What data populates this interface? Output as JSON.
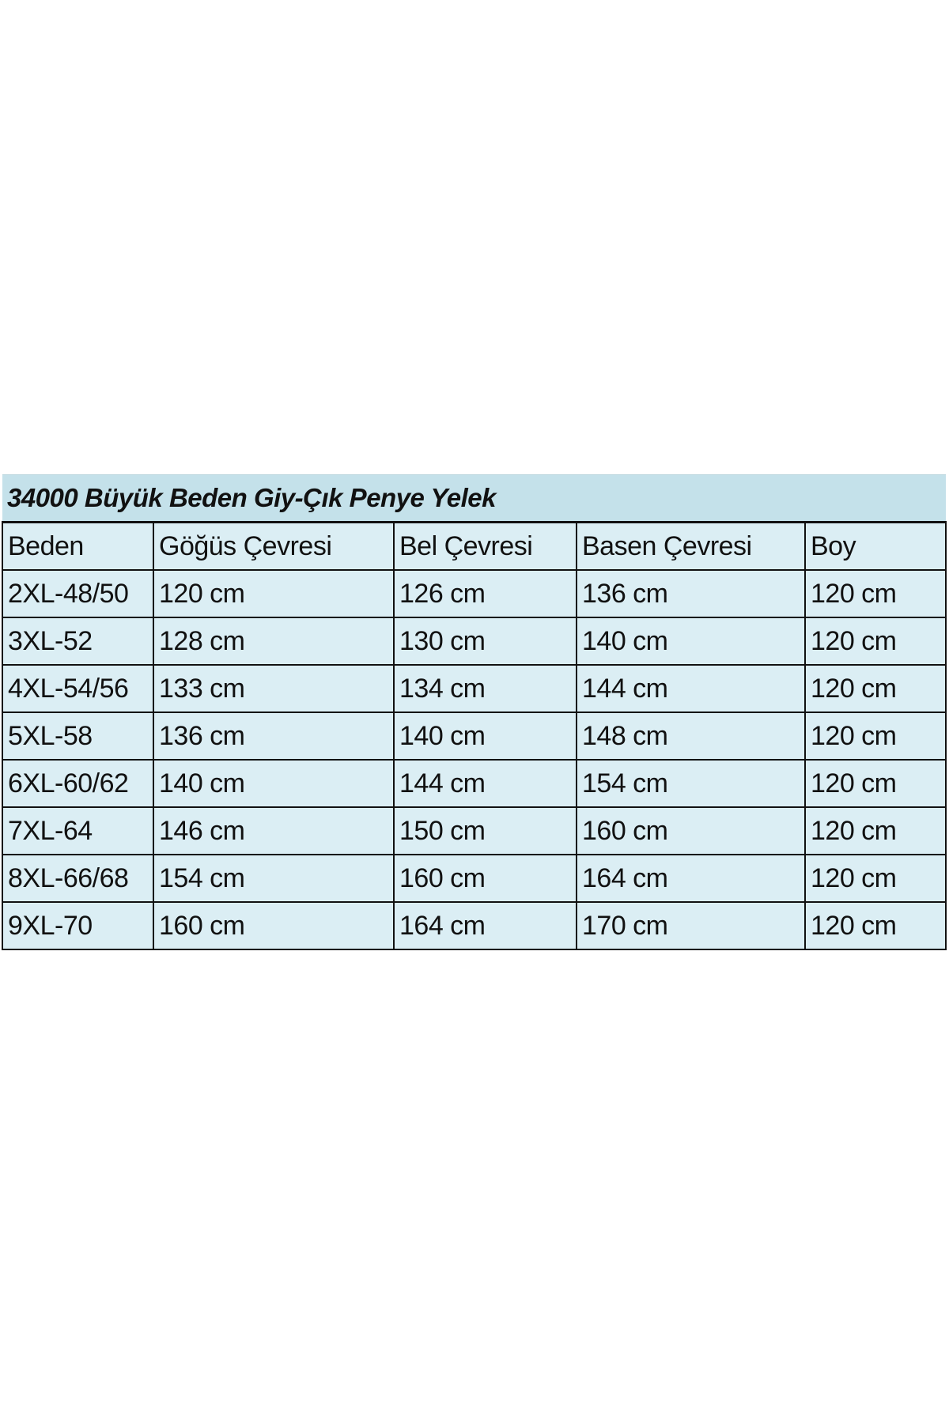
{
  "title": "34000 Büyük Beden Giy-Çık Penye Yelek",
  "columns": [
    "Beden",
    "Göğüs Çevresi",
    "Bel Çevresi",
    "Basen Çevresi",
    "Boy"
  ],
  "rows": [
    [
      "2XL-48/50",
      "120 cm",
      "126 cm",
      "136 cm",
      "120 cm"
    ],
    [
      "3XL-52",
      "128 cm",
      "130 cm",
      "140 cm",
      "120 cm"
    ],
    [
      "4XL-54/56",
      "133 cm",
      "134 cm",
      "144 cm",
      "120 cm"
    ],
    [
      "5XL-58",
      "136 cm",
      "140 cm",
      "148 cm",
      "120 cm"
    ],
    [
      "6XL-60/62",
      "140 cm",
      "144 cm",
      "154 cm",
      "120 cm"
    ],
    [
      "7XL-64",
      "146 cm",
      "150 cm",
      "160 cm",
      "120 cm"
    ],
    [
      "8XL-66/68",
      "154 cm",
      "160 cm",
      "164 cm",
      "120 cm"
    ],
    [
      "9XL-70",
      "160 cm",
      "164 cm",
      "170 cm",
      "120 cm"
    ]
  ],
  "colors": {
    "title_bg": "#c4e1ea",
    "cell_bg": "#dbeef4",
    "border": "#111111"
  }
}
